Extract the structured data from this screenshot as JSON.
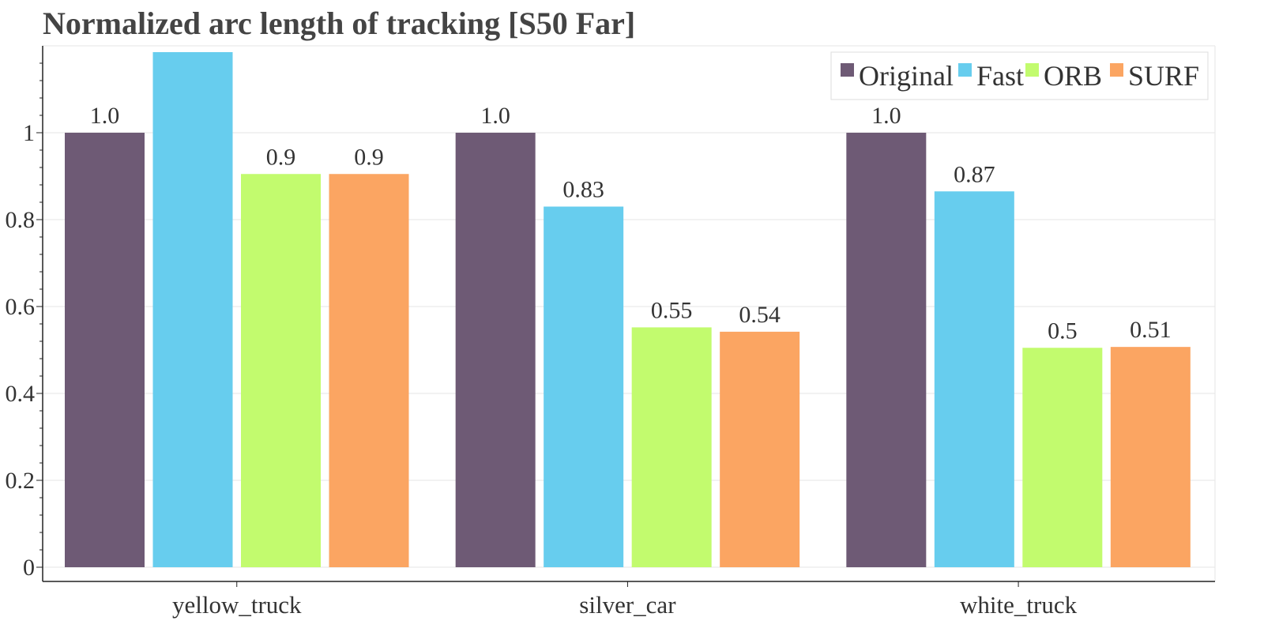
{
  "chart_data": {
    "type": "bar",
    "title": "Normalized arc length of tracking [S50 Far]",
    "xlabel": "",
    "ylabel": "",
    "categories": [
      "yellow_truck",
      "silver_car",
      "white_truck"
    ],
    "series": [
      {
        "name": "Original",
        "color": "#6e5a75",
        "values": [
          1.0,
          1.0,
          1.0
        ],
        "labels": [
          "1.0",
          "1.0",
          "1.0"
        ]
      },
      {
        "name": "Fast",
        "color": "#67cdee",
        "values": [
          1.2,
          0.83,
          0.865
        ],
        "labels": [
          "",
          "0.83",
          "0.87"
        ]
      },
      {
        "name": "ORB",
        "color": "#c2fb6e",
        "values": [
          0.905,
          0.552,
          0.505
        ],
        "labels": [
          "0.9",
          "0.55",
          "0.5"
        ]
      },
      {
        "name": "SURF",
        "color": "#fba562",
        "values": [
          0.905,
          0.542,
          0.507
        ],
        "labels": [
          "0.9",
          "0.54",
          "0.51"
        ]
      }
    ],
    "ylim": [
      0,
      1.2
    ],
    "yticks": [
      0,
      0.2,
      0.4,
      0.6,
      0.8,
      1
    ],
    "ytick_labels": [
      "0",
      "0.2",
      "0.4",
      "0.6",
      "0.8",
      "1"
    ],
    "grid": true,
    "legend_position": "top-right"
  }
}
